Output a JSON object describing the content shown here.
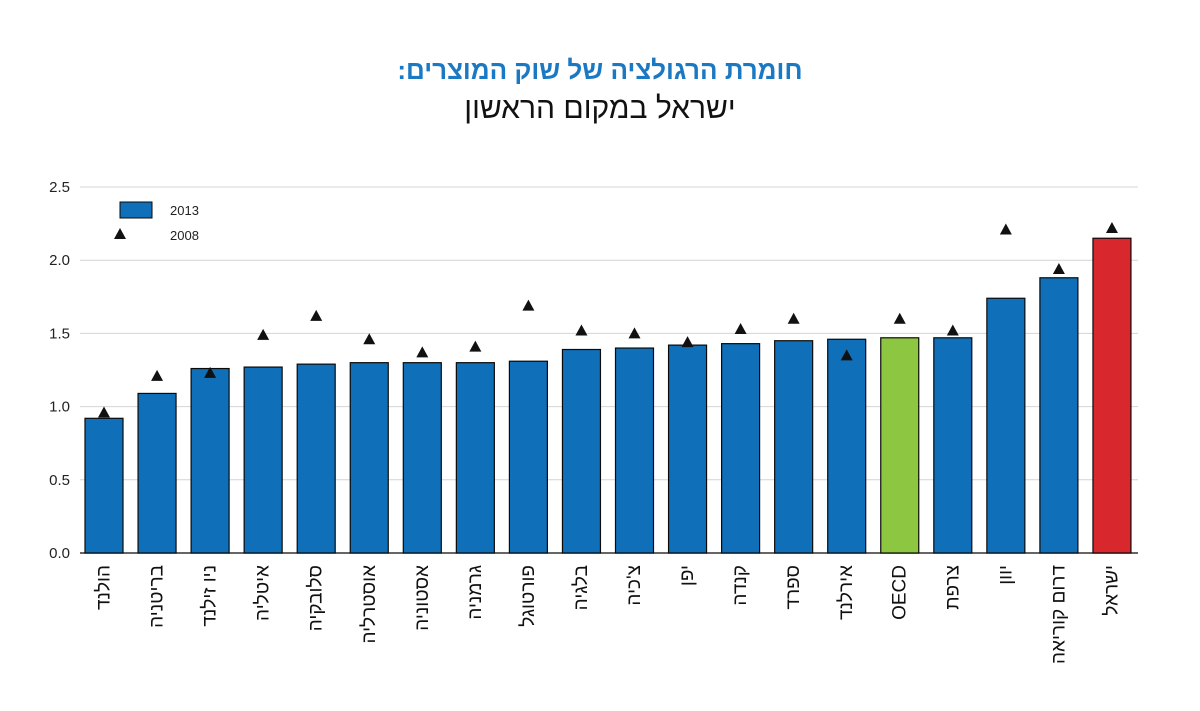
{
  "title": "חומרת הרגולציה של שוק המוצרים:",
  "subtitle": "ישראל במקום הראשון",
  "colors": {
    "default": "#0f6fb8",
    "oecd": "#8dc641",
    "israel": "#d9272e",
    "marker": "#111111",
    "grid": "#d4d4d4"
  },
  "chart_data": {
    "type": "bar",
    "ylim": [
      0,
      2.5
    ],
    "yticks": [
      "0.0",
      "0.5",
      "1.0",
      "1.5",
      "2.0",
      "2.5"
    ],
    "grid": true,
    "legend_position": "top-left",
    "categories": [
      "הולנד",
      "בריטניה",
      "ניו זילנד",
      "איטליה",
      "סלובקיה",
      "אוסטרליה",
      "אסטוניה",
      "גרמניה",
      "פורטוגל",
      "בלגיה",
      "צ'כיה",
      "יפן",
      "קנדה",
      "ספרד",
      "אירלנד",
      "OECD",
      "צרפת",
      "יוון",
      "דרום קוריאה",
      "ישראל"
    ],
    "series": [
      {
        "name": "2013",
        "type": "bar",
        "values": [
          0.92,
          1.09,
          1.26,
          1.27,
          1.29,
          1.3,
          1.3,
          1.3,
          1.31,
          1.39,
          1.4,
          1.42,
          1.43,
          1.45,
          1.46,
          1.47,
          1.47,
          1.74,
          1.88,
          2.15
        ]
      },
      {
        "name": "2008",
        "type": "marker",
        "values": [
          0.96,
          1.21,
          1.23,
          1.49,
          1.62,
          1.46,
          1.37,
          1.41,
          1.69,
          1.52,
          1.5,
          1.44,
          1.53,
          1.6,
          1.35,
          1.6,
          1.52,
          2.21,
          1.94,
          2.22
        ]
      }
    ],
    "highlight": {
      "OECD": "oecd",
      "ישראל": "israel"
    }
  }
}
